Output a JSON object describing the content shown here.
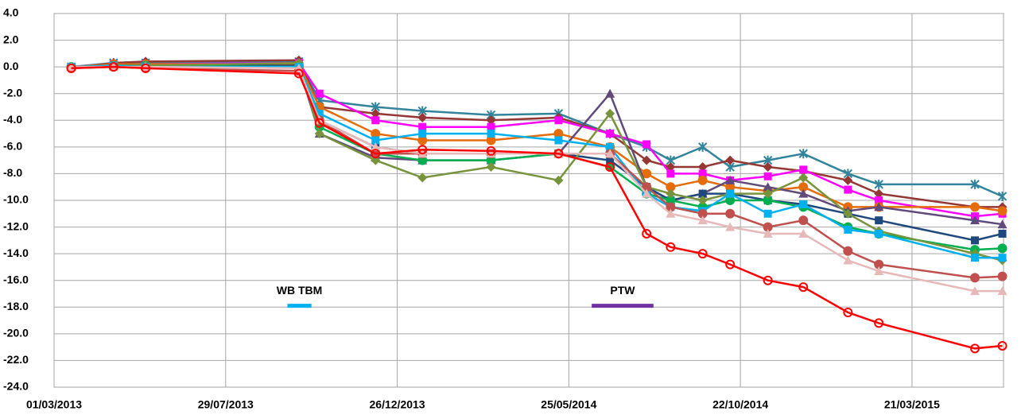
{
  "chart_data": {
    "type": "line",
    "xlim": [
      "01/03/2013",
      "09/06/2015"
    ],
    "xticks": [
      "01/03/2013",
      "29/07/2013",
      "26/12/2013",
      "25/05/2014",
      "22/10/2014",
      "21/03/2015"
    ],
    "ylim": [
      -24,
      4
    ],
    "yticks": [
      {
        "value": 4,
        "label": "4.0"
      },
      {
        "value": 2,
        "label": "2.0"
      },
      {
        "value": 0,
        "label": "0.0"
      },
      {
        "value": -2,
        "label": "-2.0"
      },
      {
        "value": -4,
        "label": "-4.0"
      },
      {
        "value": -6,
        "label": "-6.0"
      },
      {
        "value": -8,
        "label": "-8.0"
      },
      {
        "value": -10,
        "label": "-10.0"
      },
      {
        "value": -12,
        "label": "-12.0"
      },
      {
        "value": -14,
        "label": "-14.0"
      },
      {
        "value": -16,
        "label": "-16.0"
      },
      {
        "value": -18,
        "label": "-18.0"
      },
      {
        "value": -20,
        "label": "-20.0"
      },
      {
        "value": -22,
        "label": "-22.0"
      },
      {
        "value": -24,
        "label": "-24.0"
      }
    ],
    "grid": true,
    "x": [
      "16/03/2013",
      "22/04/2013",
      "20/05/2013",
      "01/10/2013",
      "19/10/2013",
      "07/12/2013",
      "17/01/2014",
      "18/03/2014",
      "16/05/2014",
      "30/06/2014",
      "01/08/2014",
      "22/08/2014",
      "19/09/2014",
      "13/10/2014",
      "15/11/2014",
      "16/12/2014",
      "24/01/2015",
      "20/02/2015",
      "15/05/2015",
      "08/06/2015"
    ],
    "series": [
      {
        "color": "#31849b",
        "marker": "star",
        "values": [
          0,
          0.3,
          0.3,
          0.4,
          -2.5,
          -3,
          -3.3,
          -3.6,
          -3.5,
          -5,
          -6,
          -7,
          -6,
          -7.5,
          -7,
          -6.5,
          -8,
          -8.8,
          -8.8,
          -9.7
        ]
      },
      {
        "color": "#953735",
        "marker": "diamond",
        "values": [
          -0.1,
          0.3,
          0.4,
          0.5,
          -3,
          -3.5,
          -3.8,
          -4,
          -3.8,
          -5,
          -7,
          -7.5,
          -7.5,
          -7,
          -7.5,
          -7.8,
          -8.5,
          -9.5,
          -10.5,
          -10.5
        ]
      },
      {
        "color": "#ff00ff",
        "marker": "square",
        "values": [
          0,
          0.2,
          0.2,
          0.3,
          -2,
          -4,
          -4.5,
          -4.5,
          -4,
          -5,
          -5.8,
          -8,
          -8,
          -8.5,
          -8.2,
          -7.7,
          -9.2,
          -10,
          -11.2,
          -11
        ]
      },
      {
        "color": "#e46c0a",
        "marker": "circle",
        "values": [
          0,
          0.2,
          0.2,
          0.2,
          -3,
          -5,
          -5.5,
          -5.5,
          -5,
          -6,
          -8,
          -9,
          -8.5,
          -9,
          -9.3,
          -9,
          -10.5,
          -10.5,
          -10.5,
          -10.8
        ]
      },
      {
        "color": "#604a7b",
        "marker": "triangle",
        "values": [
          0,
          0.1,
          0.1,
          0,
          -5,
          -6.8,
          -7,
          -7,
          -6.5,
          -2,
          -9,
          -10,
          -9.5,
          -8.5,
          -9,
          -9.5,
          -10.8,
          -10.5,
          -11.5,
          -11.8
        ]
      },
      {
        "color": "#1f497d",
        "marker": "square",
        "values": [
          0,
          0.1,
          0.1,
          0.1,
          -4,
          -6,
          -6.5,
          -6.5,
          -6.5,
          -7,
          -9,
          -10,
          -9.5,
          -9.5,
          -10,
          -10.3,
          -11,
          -11.5,
          -13,
          -12.5
        ]
      },
      {
        "color": "#00b050",
        "marker": "circle",
        "values": [
          0,
          0.1,
          0.1,
          0,
          -4.5,
          -6.5,
          -7,
          -7,
          -6.5,
          -7.5,
          -9.5,
          -10,
          -10.5,
          -10,
          -10,
          -10.5,
          -12,
          -12.5,
          -13.7,
          -13.6
        ]
      },
      {
        "color": "#77933c",
        "marker": "diamond",
        "values": [
          0,
          0.1,
          0.1,
          0.3,
          -5,
          -7,
          -8.3,
          -7.5,
          -8.5,
          -3.5,
          -9,
          -9.5,
          -10,
          -9.5,
          -9.5,
          -8.3,
          -11,
          -12.3,
          -14,
          -14.5
        ]
      },
      {
        "color": "#00b0f0",
        "marker": "square",
        "values": [
          0,
          0.1,
          0,
          0,
          -3.5,
          -5.5,
          -5,
          -5,
          -5.5,
          -6,
          -9.5,
          -10.5,
          -10.8,
          -9.5,
          -11,
          -10.3,
          -12.2,
          -12.5,
          -14.3,
          -14.3
        ]
      },
      {
        "color": "#c0504d",
        "marker": "circle",
        "values": [
          -0.1,
          0,
          -0.1,
          -0.3,
          -4,
          -6.5,
          -6.5,
          -6.5,
          -6.5,
          -6.5,
          -9,
          -10.5,
          -11,
          -11,
          -12,
          -11.5,
          -13.8,
          -14.8,
          -15.8,
          -15.7
        ]
      },
      {
        "color": "#e6b9b8",
        "marker": "triangle",
        "values": [
          0,
          0,
          0,
          -0.1,
          -4,
          -6,
          -6.5,
          -6.5,
          -6.5,
          -6.5,
          -9.5,
          -11,
          -11.5,
          -12,
          -12.5,
          -12.5,
          -14.5,
          -15.3,
          -16.8,
          -16.8
        ]
      },
      {
        "color": "#ff0000",
        "marker": "circle-open",
        "values": [
          -0.1,
          0,
          -0.1,
          -0.5,
          -4.2,
          -6.5,
          -6.2,
          -6.3,
          -6.5,
          -7.5,
          -12.5,
          -13.5,
          -14,
          -14.8,
          -16,
          -16.5,
          -18.4,
          -19.2,
          -21.1,
          -20.9
        ]
      }
    ],
    "annotations": [
      {
        "text": "WB TBM",
        "color": "#00b0f0",
        "x": [
          "21/09/2013",
          "12/10/2013"
        ],
        "y": -17.9,
        "text_y": -16.8
      },
      {
        "text": "PTW",
        "color": "#7030a0",
        "x": [
          "14/06/2014",
          "07/08/2014"
        ],
        "y": -17.9,
        "text_y": -16.8
      }
    ]
  }
}
